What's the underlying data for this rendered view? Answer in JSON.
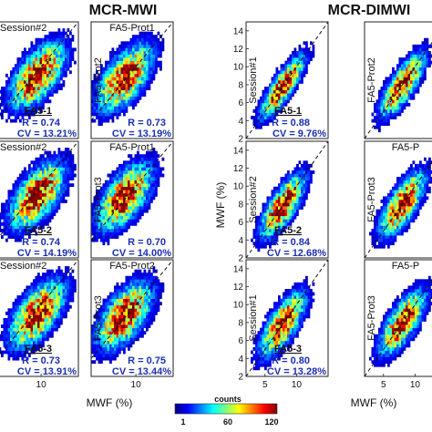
{
  "titles": {
    "left": "MCR-MWI",
    "right": "MCR-DIMWI"
  },
  "xlabel": "MWF (%)",
  "ylabel": "MWF (%)",
  "colorbar": {
    "label": "counts",
    "ticks": [
      "1",
      "60",
      "120"
    ],
    "min": 1,
    "max": 120
  },
  "chart_data": [
    {
      "type": "heatmap",
      "group": "MCR-MWI",
      "rows": [
        {
          "panels": [
            {
              "ylabel": "Session#2",
              "name": "FA5-1",
              "r": "R = 0.74",
              "cv": "CV = 13.21%",
              "cx": 9.5,
              "cy": 9.0,
              "spread": 1.0
            },
            {
              "ylabel": "FA5-Prot2",
              "title": "FA5-Prot1",
              "r": "R = 0.73",
              "cv": "CV = 13.19%",
              "cx": 8.5,
              "cy": 8.8,
              "spread": 1.0
            }
          ]
        },
        {
          "panels": [
            {
              "ylabel": "Session#2",
              "name": "FA5-2",
              "r": "R = 0.74",
              "cv": "CV = 14.19%",
              "cx": 9.5,
              "cy": 9.0,
              "spread": 1.0
            },
            {
              "ylabel": "FA5-Prot3",
              "title": "FA5-Prot1",
              "r": "R = 0.70",
              "cv": "CV = 14.00%",
              "cx": 8.5,
              "cy": 8.8,
              "spread": 1.0
            }
          ]
        },
        {
          "panels": [
            {
              "ylabel": "Session#2",
              "name": "FA5-3",
              "r": "R = 0.73",
              "cv": "CV = 13.91%",
              "cx": 9.5,
              "cy": 9.0,
              "spread": 1.0
            },
            {
              "ylabel": "FA5-Prot3",
              "title": "FA5-Prot2",
              "r": "R = 0.75",
              "cv": "CV = 13.44%",
              "cx": 8.5,
              "cy": 8.8,
              "spread": 1.0
            }
          ]
        }
      ],
      "xticks": [
        10
      ],
      "xlim": [
        4,
        15
      ],
      "ylim": [
        2,
        15
      ]
    },
    {
      "type": "heatmap",
      "group": "MCR-DIMWI",
      "rows": [
        {
          "panels": [
            {
              "ylabel": "Session#1",
              "name": "FA5-1",
              "r": "R = 0.88",
              "cv": "CV = 9.76%",
              "cx": 7.8,
              "cy": 7.8,
              "spread": 0.6
            },
            {
              "ylabel": "FA5-Prot2",
              "cx": 8.0,
              "cy": 8.0,
              "spread": 0.7
            }
          ]
        },
        {
          "panels": [
            {
              "ylabel": "Session#2",
              "name": "FA5-2",
              "r": "R = 0.84",
              "cv": "CV = 12.68%",
              "cx": 7.8,
              "cy": 7.8,
              "spread": 0.75
            },
            {
              "ylabel": "FA5-Prot3",
              "title": "FA5-P",
              "cx": 8.0,
              "cy": 8.0,
              "spread": 0.8
            }
          ]
        },
        {
          "panels": [
            {
              "ylabel": "Session#1",
              "name": "FA5-3",
              "r": "R = 0.80",
              "cv": "CV = 13.28%",
              "cx": 7.8,
              "cy": 7.8,
              "spread": 0.8
            },
            {
              "ylabel": "FA5-Prot3",
              "title": "FA5-P",
              "cx": 8.0,
              "cy": 8.0,
              "spread": 0.8
            }
          ]
        }
      ],
      "yticks": [
        2,
        4,
        6,
        8,
        10,
        12,
        14
      ],
      "xticks": [
        5,
        10
      ],
      "xlim": [
        2,
        15
      ],
      "ylim": [
        2,
        15
      ]
    }
  ]
}
